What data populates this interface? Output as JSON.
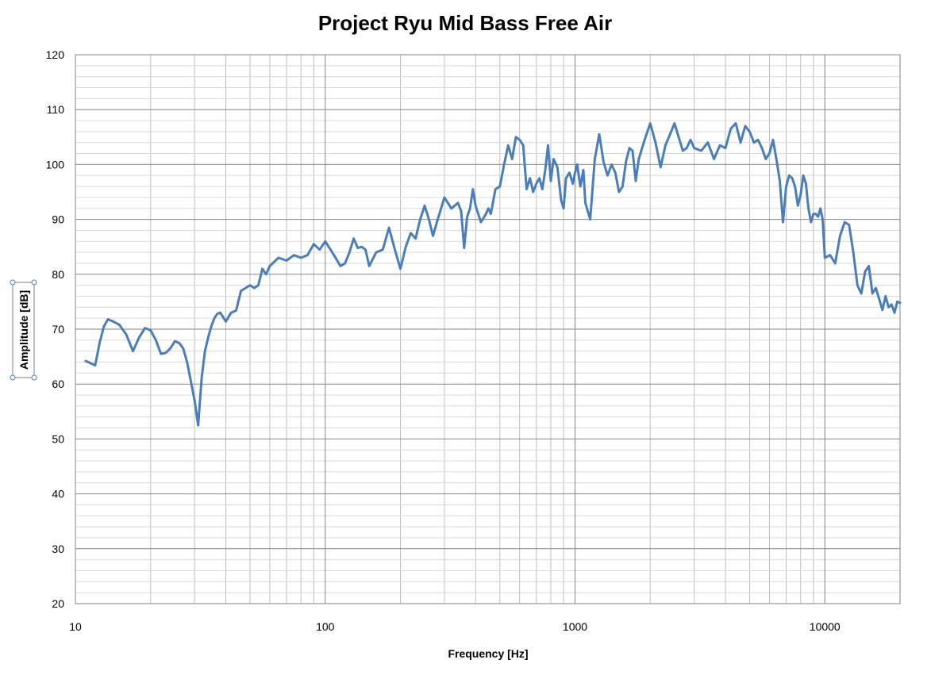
{
  "chart_data": {
    "type": "line",
    "title": "Project Ryu Mid Bass Free Air",
    "xlabel": "Frequency [Hz]",
    "ylabel": "Amplitude [dB]",
    "x_scale": "log",
    "xlim": [
      10,
      20000
    ],
    "ylim": [
      20,
      120
    ],
    "x_ticks": [
      10,
      100,
      1000,
      10000
    ],
    "x_tick_labels": [
      "10",
      "100",
      "1000",
      "10000"
    ],
    "y_ticks": [
      20,
      30,
      40,
      50,
      60,
      70,
      80,
      90,
      100,
      110,
      120
    ],
    "y_tick_labels": [
      "20",
      "30",
      "40",
      "50",
      "60",
      "70",
      "80",
      "90",
      "100",
      "110",
      "120"
    ],
    "grid": true,
    "legend": "none",
    "line_color": "#4a7ebb",
    "series": [
      {
        "x": [
          11,
          11.5,
          12,
          12.5,
          13,
          13.5,
          14,
          15,
          16,
          17,
          18,
          19,
          20,
          21,
          22,
          23,
          24,
          25,
          26,
          27,
          28,
          29,
          30,
          31,
          32,
          33,
          34,
          35,
          36,
          37,
          38,
          40,
          42,
          44,
          46,
          48,
          50,
          52,
          54,
          56,
          58,
          60,
          65,
          70,
          75,
          80,
          85,
          90,
          95,
          100,
          105,
          110,
          115,
          120,
          125,
          130,
          135,
          140,
          145,
          150,
          160,
          170,
          180,
          190,
          200,
          210,
          220,
          230,
          240,
          250,
          260,
          270,
          280,
          300,
          320,
          340,
          350,
          360,
          370,
          380,
          390,
          400,
          420,
          440,
          450,
          460,
          480,
          500,
          520,
          540,
          560,
          580,
          600,
          620,
          640,
          660,
          680,
          700,
          720,
          740,
          760,
          780,
          800,
          820,
          850,
          880,
          900,
          920,
          950,
          980,
          1000,
          1020,
          1050,
          1080,
          1100,
          1150,
          1200,
          1250,
          1300,
          1350,
          1400,
          1450,
          1500,
          1550,
          1600,
          1650,
          1700,
          1750,
          1800,
          1900,
          2000,
          2100,
          2200,
          2300,
          2400,
          2500,
          2600,
          2700,
          2800,
          2900,
          3000,
          3200,
          3400,
          3600,
          3800,
          4000,
          4200,
          4400,
          4600,
          4800,
          5000,
          5200,
          5400,
          5600,
          5800,
          6000,
          6200,
          6400,
          6600,
          6800,
          7000,
          7200,
          7400,
          7600,
          7800,
          8000,
          8200,
          8400,
          8600,
          8800,
          9000,
          9200,
          9400,
          9600,
          9800,
          10000,
          10500,
          11000,
          11500,
          12000,
          12500,
          13000,
          13500,
          14000,
          14500,
          15000,
          15500,
          16000,
          16500,
          17000,
          17500,
          18000,
          18500,
          19000,
          19500,
          20000
        ],
        "y": [
          64.2,
          63.8,
          63.4,
          67.5,
          70.5,
          71.8,
          71.5,
          70.8,
          69,
          66,
          68.5,
          70.2,
          69.8,
          68,
          65.5,
          65.7,
          66.5,
          67.8,
          67.5,
          66.5,
          64,
          60.5,
          57,
          52.5,
          61,
          66,
          68.5,
          70.5,
          72,
          72.8,
          73,
          71.4,
          73,
          73.4,
          77,
          77.5,
          78,
          77.5,
          78,
          81,
          80,
          81.5,
          83,
          82.5,
          83.5,
          83,
          83.5,
          85.5,
          84.5,
          86,
          84.5,
          83,
          81.5,
          82,
          84,
          86.5,
          84.8,
          85,
          84.5,
          81.5,
          84,
          84.5,
          88.5,
          84.5,
          81,
          85,
          87.5,
          86.5,
          90,
          92.5,
          90,
          87,
          89.5,
          94,
          92,
          93,
          91.5,
          84.8,
          90.5,
          92,
          95.5,
          92.5,
          89.5,
          91,
          92,
          91,
          95.5,
          96,
          100,
          103.5,
          101,
          105,
          104.5,
          103.5,
          95.5,
          97.5,
          95,
          96.5,
          97.5,
          95.5,
          99,
          103.5,
          97,
          101,
          99.5,
          93.5,
          92,
          97.5,
          98.5,
          96.5,
          98.5,
          100,
          96,
          99,
          93,
          90,
          101,
          105.5,
          100.5,
          98,
          100,
          98.5,
          95,
          96,
          100.5,
          103,
          102.5,
          97,
          101,
          104.5,
          107.5,
          104,
          99.5,
          103.5,
          105.5,
          107.5,
          105,
          102.5,
          103,
          104.5,
          103,
          102.5,
          104,
          101,
          103.5,
          103,
          106.5,
          107.5,
          104,
          107,
          106,
          104,
          104.5,
          103,
          101,
          102,
          104.5,
          101,
          97,
          89.5,
          96,
          98,
          97.5,
          96,
          92.5,
          94.5,
          98,
          96.5,
          92,
          89.5,
          91,
          91,
          90.5,
          92,
          90,
          83,
          83.5,
          82,
          87,
          89.5,
          89,
          84,
          78,
          76.5,
          80.5,
          81.5,
          76.5,
          77.5,
          75.5,
          73.5,
          76,
          74,
          74.5,
          73,
          75,
          74.8
        ]
      }
    ]
  }
}
